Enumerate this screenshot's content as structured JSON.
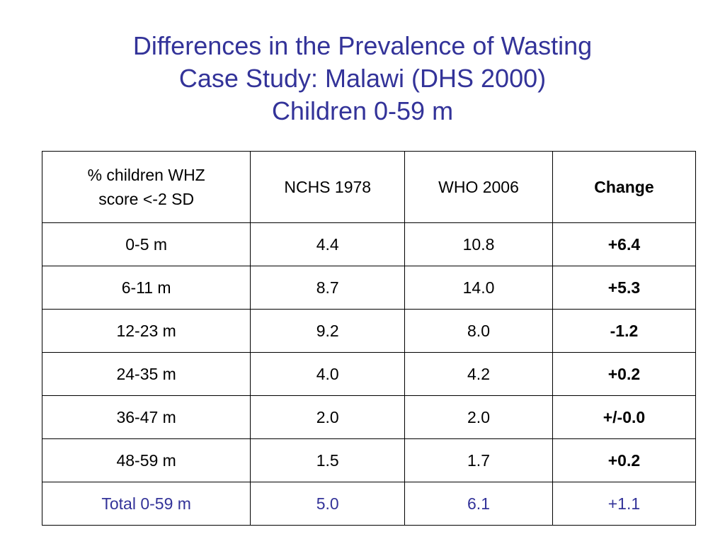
{
  "title": {
    "line1": "Differences in the Prevalence of Wasting",
    "line2": "Case Study: Malawi (DHS 2000)",
    "line3": "Children 0-59 m"
  },
  "table": {
    "header": {
      "label_line1": "% children WHZ",
      "label_line2": "score <-2 SD",
      "col2": "NCHS 1978",
      "col3": "WHO 2006",
      "col4": "Change"
    },
    "rows": [
      {
        "age": "0-5 m",
        "nchs": "4.4",
        "who": "10.8",
        "change": "+6.4"
      },
      {
        "age": "6-11 m",
        "nchs": "8.7",
        "who": "14.0",
        "change": "+5.3"
      },
      {
        "age": "12-23 m",
        "nchs": "9.2",
        "who": "8.0",
        "change": "-1.2"
      },
      {
        "age": "24-35 m",
        "nchs": "4.0",
        "who": "4.2",
        "change": "+0.2"
      },
      {
        "age": "36-47 m",
        "nchs": "2.0",
        "who": "2.0",
        "change": "+/-0.0"
      },
      {
        "age": "48-59 m",
        "nchs": "1.5",
        "who": "1.7",
        "change": "+0.2"
      }
    ],
    "total": {
      "age": "Total 0-59 m",
      "nchs": "5.0",
      "who": "6.1",
      "change": "+1.1"
    }
  },
  "colors": {
    "title": "#333399",
    "total_row": "#333399",
    "text": "#000000",
    "border": "#000000"
  }
}
